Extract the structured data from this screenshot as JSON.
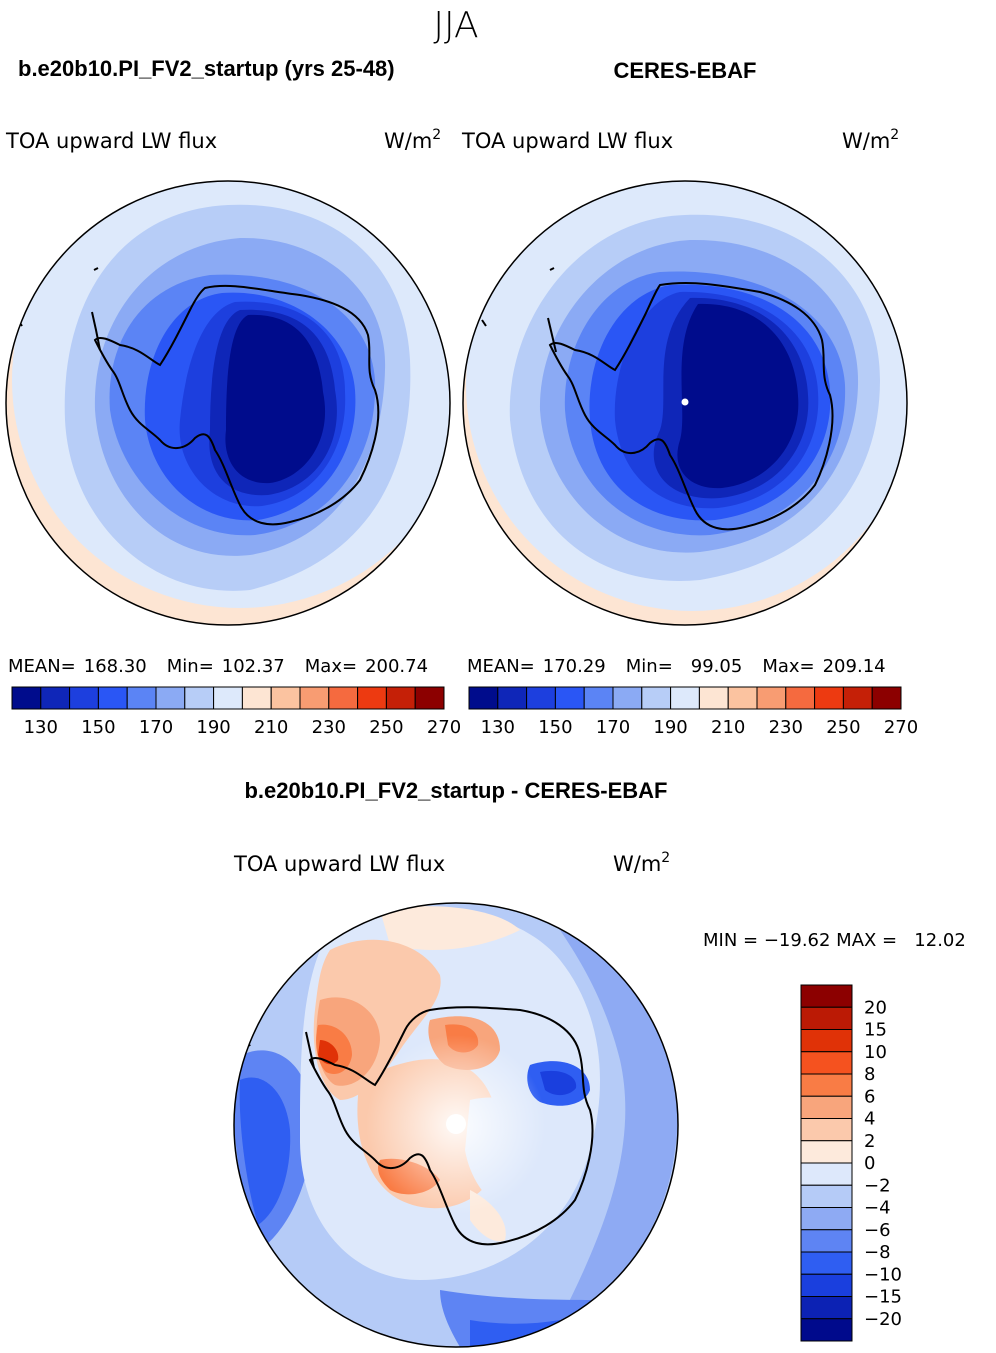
{
  "page_title": "JJA",
  "panels": [
    {
      "id": "model",
      "case_title": "b.e20b10.PI_FV2_startup (yrs 25-48)",
      "var_name": "TOA upward LW flux",
      "units_base": "W/m",
      "units_exp": "2",
      "mean_label": "MEAN=",
      "mean_value": "168.30",
      "min_label": "Min=",
      "min_value": "102.37",
      "max_label": "Max=",
      "max_value": "200.74"
    },
    {
      "id": "obs",
      "case_title": "CERES-EBAF",
      "var_name": "TOA upward LW flux",
      "units_base": "W/m",
      "units_exp": "2",
      "mean_label": "MEAN=",
      "mean_value": "170.29",
      "min_label": "Min=",
      "min_value": "99.05",
      "max_label": "Max=",
      "max_value": "209.14"
    },
    {
      "id": "diff",
      "case_title": "b.e20b10.PI_FV2_startup - CERES-EBAF",
      "var_name": "TOA upward LW flux",
      "units_base": "W/m",
      "units_exp": "2",
      "minmax_text": "MIN = −19.62 MAX =   12.02"
    }
  ],
  "chart_data": [
    {
      "type": "heatmap",
      "projection": "south-polar-stereographic",
      "title": "b.e20b10.PI_FV2_startup (yrs 25-48)",
      "variable": "TOA upward LW flux",
      "units": "W/m2",
      "stats": {
        "mean": 168.3,
        "min": 102.37,
        "max": 200.74
      },
      "colorbar": {
        "orientation": "horizontal",
        "colors": [
          "#000c8c",
          "#0f26b8",
          "#1d3fde",
          "#2a56f5",
          "#5b84f5",
          "#8baaf4",
          "#b7cdf7",
          "#dde9fb",
          "#fde5d3",
          "#fbc3a0",
          "#f89c72",
          "#f56a3f",
          "#ed3a11",
          "#c52007",
          "#8c0000"
        ],
        "tick_labels": [
          "130",
          "150",
          "170",
          "190",
          "210",
          "230",
          "250",
          "270"
        ]
      }
    },
    {
      "type": "heatmap",
      "projection": "south-polar-stereographic",
      "title": "CERES-EBAF",
      "variable": "TOA upward LW flux",
      "units": "W/m2",
      "stats": {
        "mean": 170.29,
        "min": 99.05,
        "max": 209.14
      },
      "colorbar": {
        "orientation": "horizontal",
        "colors": [
          "#000c8c",
          "#0f26b8",
          "#1d3fde",
          "#2a56f5",
          "#5b84f5",
          "#8baaf4",
          "#b7cdf7",
          "#dde9fb",
          "#fde5d3",
          "#fbc3a0",
          "#f89c72",
          "#f56a3f",
          "#ed3a11",
          "#c52007",
          "#8c0000"
        ],
        "tick_labels": [
          "130",
          "150",
          "170",
          "190",
          "210",
          "230",
          "250",
          "270"
        ]
      }
    },
    {
      "type": "heatmap",
      "projection": "south-polar-stereographic",
      "title": "b.e20b10.PI_FV2_startup - CERES-EBAF",
      "variable": "TOA upward LW flux",
      "units": "W/m2",
      "stats": {
        "min": -19.62,
        "max": 12.02
      },
      "colorbar": {
        "orientation": "vertical",
        "colors_top_to_bottom": [
          "#8c0000",
          "#bb1a05",
          "#e03207",
          "#f5521f",
          "#f97c45",
          "#f8a57c",
          "#fbc9ac",
          "#fdeadc",
          "#dde8fb",
          "#b5cbf7",
          "#8eaaf3",
          "#5e84f3",
          "#2f5ef2",
          "#1a3fde",
          "#0c22b4",
          "#000a8c"
        ],
        "tick_labels_top_to_bottom": [
          "20",
          "15",
          "10",
          "8",
          "6",
          "4",
          "2",
          "0",
          "−2",
          "−4",
          "−6",
          "−8",
          "−10",
          "−15",
          "−20"
        ]
      }
    }
  ]
}
